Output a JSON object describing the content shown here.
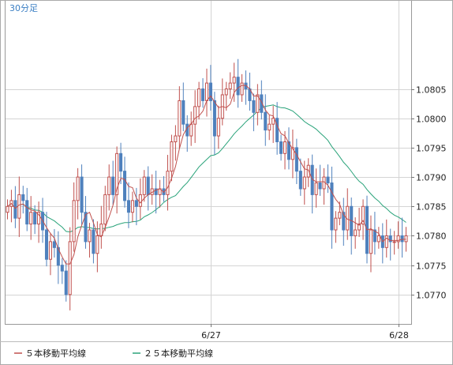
{
  "chart_data": {
    "type": "candlestick",
    "timeframe_label": "30分足",
    "ylim": [
      1.0765,
      1.082
    ],
    "yticks": [
      "1.0805",
      "1.0800",
      "1.0795",
      "1.0790",
      "1.0785",
      "1.0780",
      "1.0775",
      "1.0770"
    ],
    "xticks": [
      {
        "index": 52,
        "label": "6/27"
      },
      {
        "index": 100,
        "label": "6/28"
      }
    ],
    "colors": {
      "up": "#c0504d",
      "down": "#4f81bd",
      "ma5": "#c0504d",
      "ma25": "#2aa37a",
      "grid": "#d4d4d4",
      "timeframe": "#3b7fc4"
    },
    "legend": [
      {
        "label": "５本移動平均線",
        "color": "#c0504d"
      },
      {
        "label": "２５本移動平均線",
        "color": "#2aa37a"
      }
    ],
    "closes": [
      1.0785,
      1.0786,
      1.0783,
      1.0787,
      1.0786,
      1.0782,
      1.0784,
      1.0782,
      1.0784,
      1.0781,
      1.0776,
      1.0779,
      1.0778,
      1.0775,
      1.0774,
      1.077,
      1.0779,
      1.0786,
      1.079,
      1.0784,
      1.0779,
      1.0781,
      1.0777,
      1.078,
      1.0782,
      1.0787,
      1.079,
      1.0787,
      1.0794,
      1.0791,
      1.0786,
      1.0784,
      1.0786,
      1.0785,
      1.0787,
      1.079,
      1.0787,
      1.0788,
      1.0787,
      1.0788,
      1.0787,
      1.0791,
      1.0796,
      1.0797,
      1.0803,
      1.0799,
      1.0797,
      1.0799,
      1.0802,
      1.0805,
      1.0803,
      1.0806,
      1.0803,
      1.0797,
      1.08,
      1.0804,
      1.0805,
      1.0806,
      1.0807,
      1.0804,
      1.0806,
      1.0805,
      1.0803,
      1.0801,
      1.0804,
      1.0801,
      1.0798,
      1.0799,
      1.08,
      1.0796,
      1.0794,
      1.0796,
      1.0793,
      1.0795,
      1.0791,
      1.0788,
      1.079,
      1.0792,
      1.0787,
      1.0789,
      1.0788,
      1.079,
      1.0789,
      1.0781,
      1.0783,
      1.0784,
      1.0781,
      1.0785,
      1.078,
      1.0781,
      1.0782,
      1.0785,
      1.0777,
      1.0781,
      1.0779,
      1.078,
      1.0778,
      1.078,
      1.0779,
      1.0779,
      1.078,
      1.0779,
      1.078
    ]
  }
}
